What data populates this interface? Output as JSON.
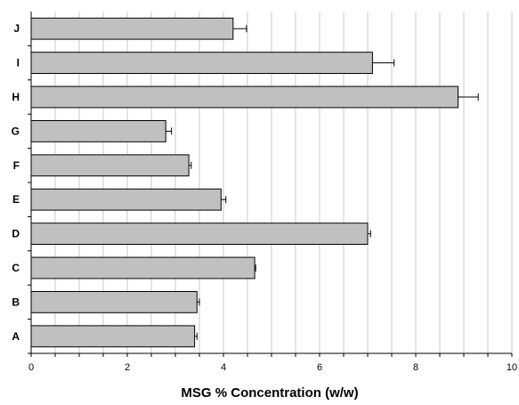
{
  "chart_data": {
    "type": "bar",
    "orientation": "horizontal",
    "categories": [
      "A",
      "B",
      "C",
      "D",
      "E",
      "F",
      "G",
      "H",
      "I",
      "J"
    ],
    "values": [
      3.4,
      3.45,
      4.65,
      7.0,
      3.95,
      3.28,
      2.8,
      8.88,
      7.1,
      4.2
    ],
    "errors": [
      0.05,
      0.05,
      0.02,
      0.06,
      0.1,
      0.05,
      0.12,
      0.42,
      0.45,
      0.28
    ],
    "title": "",
    "xlabel": "MSG % Concentration (w/w)",
    "ylabel": "",
    "xlim": [
      0,
      10
    ],
    "xticks": [
      "0",
      "2",
      "4",
      "6",
      "8",
      "10"
    ],
    "grid": true,
    "bar_color": "#c0c0c0",
    "bar_edge_color": "#000000",
    "grid_color": "#c8c8c8"
  }
}
